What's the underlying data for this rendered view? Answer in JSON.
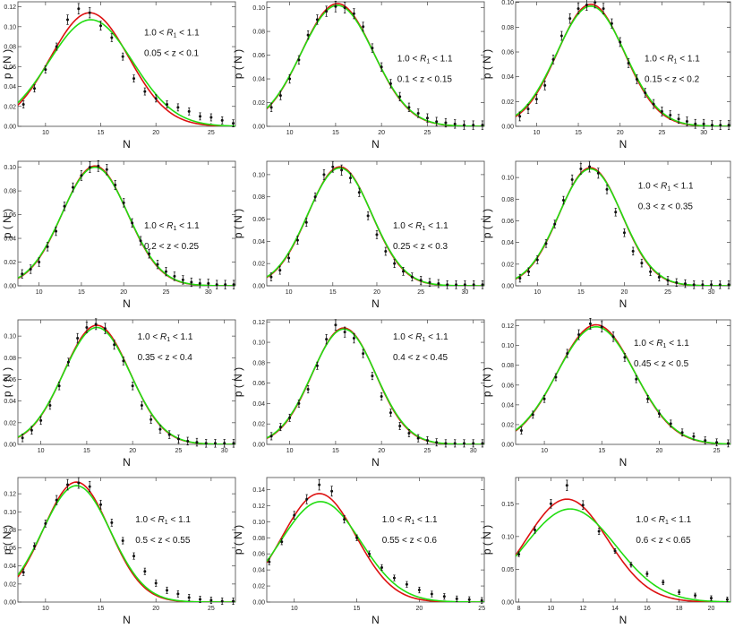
{
  "figure": {
    "colors": {
      "red_curve": "#dd1111",
      "green_curve": "#22dd11",
      "points": "#111111",
      "frame": "#444444"
    }
  },
  "chart_data": [
    {
      "type": "scatter",
      "xlabel": "N",
      "ylabel": "p ( N )",
      "annotation": {
        "line1_prefix": "1.0 < ",
        "line1_var": "R",
        "line1_sub": "1",
        "line1_suffix": " < 1.1",
        "line2": "0.05 < z < 0.1"
      },
      "xlim": [
        7.5,
        27.2
      ],
      "ylim": [
        0,
        0.125
      ],
      "xticks": [
        10,
        15,
        20,
        25
      ],
      "yticks": [
        0.0,
        0.02,
        0.04,
        0.06,
        0.08,
        0.1,
        0.12
      ],
      "x": [
        8,
        9,
        10,
        11,
        12,
        13,
        14,
        15,
        16,
        17,
        18,
        19,
        20,
        21,
        22,
        23,
        24,
        25,
        26,
        27
      ],
      "y": [
        0.022,
        0.038,
        0.057,
        0.08,
        0.107,
        0.118,
        0.114,
        0.101,
        0.089,
        0.07,
        0.048,
        0.035,
        0.028,
        0.022,
        0.019,
        0.015,
        0.01,
        0.009,
        0.006,
        0.003
      ],
      "series": [
        {
          "color": "#dd1111",
          "mean": 14.0,
          "sd": 3.55,
          "peak": 0.114
        },
        {
          "color": "#22dd11",
          "mean": 14.1,
          "sd": 3.8,
          "peak": 0.107
        }
      ]
    },
    {
      "type": "scatter",
      "xlabel": "N",
      "ylabel": "p ( N )",
      "annotation": {
        "line1_prefix": "1.0 < ",
        "line1_var": "R",
        "line1_sub": "1",
        "line1_suffix": " < 1.1",
        "line2": "0.1 < z < 0.15"
      },
      "xlim": [
        7.5,
        31.2
      ],
      "ylim": [
        0,
        0.105
      ],
      "xticks": [
        10,
        15,
        20,
        25
      ],
      "yticks": [
        0.0,
        0.02,
        0.04,
        0.06,
        0.08,
        0.1
      ],
      "x": [
        8,
        9,
        10,
        11,
        12,
        13,
        14,
        15,
        16,
        17,
        18,
        19,
        20,
        21,
        22,
        23,
        24,
        25,
        26,
        27,
        28,
        29,
        30,
        31
      ],
      "y": [
        0.016,
        0.026,
        0.04,
        0.056,
        0.077,
        0.09,
        0.097,
        0.101,
        0.1,
        0.095,
        0.084,
        0.066,
        0.05,
        0.036,
        0.025,
        0.016,
        0.011,
        0.007,
        0.004,
        0.003,
        0.002,
        0.001,
        0.001,
        0.001
      ],
      "series": [
        {
          "color": "#dd1111",
          "mean": 15.2,
          "sd": 3.9,
          "peak": 0.1035
        },
        {
          "color": "#22dd11",
          "mean": 15.2,
          "sd": 3.95,
          "peak": 0.102
        }
      ]
    },
    {
      "type": "scatter",
      "xlabel": "N",
      "ylabel": "p ( N )",
      "annotation": {
        "line1_prefix": "1.0 < ",
        "line1_var": "R",
        "line1_sub": "1",
        "line1_suffix": " < 1.1",
        "line2": "0.15 < z < 0.2"
      },
      "xlim": [
        7.5,
        33.2
      ],
      "ylim": [
        0,
        0.1005
      ],
      "xticks": [
        10,
        15,
        20,
        25,
        30
      ],
      "yticks": [
        0.0,
        0.02,
        0.04,
        0.06,
        0.08,
        0.1
      ],
      "x": [
        8,
        9,
        10,
        11,
        12,
        13,
        14,
        15,
        16,
        17,
        18,
        19,
        20,
        21,
        22,
        23,
        24,
        25,
        26,
        27,
        28,
        29,
        30,
        31,
        32,
        33
      ],
      "y": [
        0.008,
        0.014,
        0.022,
        0.033,
        0.054,
        0.073,
        0.087,
        0.095,
        0.098,
        0.1,
        0.095,
        0.083,
        0.068,
        0.051,
        0.038,
        0.027,
        0.018,
        0.012,
        0.009,
        0.006,
        0.004,
        0.002,
        0.002,
        0.001,
        0.001,
        0.001
      ],
      "series": [
        {
          "color": "#dd1111",
          "mean": 16.5,
          "sd": 4.0,
          "peak": 0.0985
        },
        {
          "color": "#22dd11",
          "mean": 16.5,
          "sd": 4.1,
          "peak": 0.097
        }
      ]
    },
    {
      "type": "scatter",
      "xlabel": "N",
      "ylabel": "p ( N )",
      "annotation": {
        "line1_prefix": "1.0 < ",
        "line1_var": "R",
        "line1_sub": "1",
        "line1_suffix": " < 1.1",
        "line2": "0.2 < z < 0.25"
      },
      "xlim": [
        7.5,
        33.2
      ],
      "ylim": [
        0,
        0.105
      ],
      "xticks": [
        10,
        15,
        20,
        25,
        30
      ],
      "yticks": [
        0.0,
        0.02,
        0.04,
        0.06,
        0.08,
        0.1
      ],
      "x": [
        8,
        9,
        10,
        11,
        12,
        13,
        14,
        15,
        16,
        17,
        18,
        19,
        20,
        21,
        22,
        23,
        24,
        25,
        26,
        27,
        28,
        29,
        30,
        31,
        32,
        33
      ],
      "y": [
        0.01,
        0.014,
        0.02,
        0.033,
        0.046,
        0.067,
        0.083,
        0.093,
        0.1,
        0.101,
        0.098,
        0.085,
        0.07,
        0.053,
        0.038,
        0.027,
        0.018,
        0.012,
        0.008,
        0.005,
        0.003,
        0.002,
        0.002,
        0.001,
        0.001,
        0.001
      ],
      "series": [
        {
          "color": "#dd1111",
          "mean": 16.6,
          "sd": 3.85,
          "peak": 0.101
        },
        {
          "color": "#22dd11",
          "mean": 16.6,
          "sd": 3.9,
          "peak": 0.1
        }
      ]
    },
    {
      "type": "scatter",
      "xlabel": "N",
      "ylabel": "p ( N )",
      "annotation": {
        "line1_prefix": "1.0 < ",
        "line1_var": "R",
        "line1_sub": "1",
        "line1_suffix": " < 1.1",
        "line2": "0.25 < z < 0.3"
      },
      "xlim": [
        7.5,
        32.2
      ],
      "ylim": [
        0,
        0.112
      ],
      "xticks": [
        10,
        15,
        20,
        25,
        30
      ],
      "yticks": [
        0.0,
        0.02,
        0.04,
        0.06,
        0.08,
        0.1
      ],
      "x": [
        8,
        9,
        10,
        11,
        12,
        13,
        14,
        15,
        16,
        17,
        18,
        19,
        20,
        21,
        22,
        23,
        24,
        25,
        26,
        27,
        28,
        29,
        30,
        31,
        32
      ],
      "y": [
        0.008,
        0.014,
        0.025,
        0.041,
        0.057,
        0.08,
        0.1,
        0.107,
        0.104,
        0.097,
        0.084,
        0.063,
        0.046,
        0.031,
        0.02,
        0.013,
        0.008,
        0.005,
        0.003,
        0.002,
        0.001,
        0.001,
        0.001,
        0.001,
        0.001
      ],
      "series": [
        {
          "color": "#dd1111",
          "mean": 15.8,
          "sd": 3.6,
          "peak": 0.107
        },
        {
          "color": "#22dd11",
          "mean": 15.8,
          "sd": 3.65,
          "peak": 0.106
        }
      ]
    },
    {
      "type": "scatter",
      "xlabel": "N",
      "ylabel": "p ( N )",
      "annotation": {
        "line1_prefix": "1.0 < ",
        "line1_var": "R",
        "line1_sub": "1",
        "line1_suffix": " < 1.1",
        "line2": "0.3 < z < 0.35"
      },
      "xlim": [
        7.5,
        32.2
      ],
      "ylim": [
        0,
        0.115
      ],
      "xticks": [
        10,
        15,
        20,
        25,
        30
      ],
      "yticks": [
        0.0,
        0.02,
        0.04,
        0.06,
        0.08,
        0.1
      ],
      "x": [
        8,
        9,
        10,
        11,
        12,
        13,
        14,
        15,
        16,
        17,
        18,
        19,
        20,
        21,
        22,
        23,
        24,
        25,
        26,
        27,
        28,
        29,
        30,
        31,
        32
      ],
      "y": [
        0.007,
        0.013,
        0.024,
        0.039,
        0.057,
        0.079,
        0.098,
        0.108,
        0.11,
        0.104,
        0.089,
        0.068,
        0.049,
        0.032,
        0.021,
        0.013,
        0.008,
        0.005,
        0.003,
        0.002,
        0.001,
        0.001,
        0.001,
        0.001,
        0.001
      ],
      "series": [
        {
          "color": "#dd1111",
          "mean": 16.1,
          "sd": 3.6,
          "peak": 0.109
        },
        {
          "color": "#22dd11",
          "mean": 16.1,
          "sd": 3.65,
          "peak": 0.108
        }
      ]
    },
    {
      "type": "scatter",
      "xlabel": "N",
      "ylabel": "p ( N )",
      "annotation": {
        "line1_prefix": "1.0 < ",
        "line1_var": "R",
        "line1_sub": "1",
        "line1_suffix": " < 1.1",
        "line2": "0.35 < z < 0.4"
      },
      "xlim": [
        7.5,
        31.2
      ],
      "ylim": [
        0,
        0.115
      ],
      "xticks": [
        10,
        15,
        20,
        25,
        30
      ],
      "yticks": [
        0.0,
        0.02,
        0.04,
        0.06,
        0.08,
        0.1
      ],
      "x": [
        8,
        9,
        10,
        11,
        12,
        13,
        14,
        15,
        16,
        17,
        18,
        19,
        20,
        21,
        22,
        23,
        24,
        25,
        26,
        27,
        28,
        29,
        30,
        31
      ],
      "y": [
        0.006,
        0.013,
        0.022,
        0.036,
        0.054,
        0.076,
        0.098,
        0.108,
        0.111,
        0.107,
        0.092,
        0.077,
        0.054,
        0.036,
        0.023,
        0.014,
        0.009,
        0.005,
        0.003,
        0.002,
        0.001,
        0.001,
        0.001,
        0.001
      ],
      "series": [
        {
          "color": "#dd1111",
          "mean": 16.1,
          "sd": 3.6,
          "peak": 0.11
        },
        {
          "color": "#22dd11",
          "mean": 16.1,
          "sd": 3.65,
          "peak": 0.108
        }
      ]
    },
    {
      "type": "scatter",
      "xlabel": "N",
      "ylabel": "p ( N )",
      "annotation": {
        "line1_prefix": "1.0 < ",
        "line1_var": "R",
        "line1_sub": "1",
        "line1_suffix": " < 1.1",
        "line2": "0.4 < z < 0.45"
      },
      "xlim": [
        7.5,
        31.2
      ],
      "ylim": [
        0,
        0.122
      ],
      "xticks": [
        10,
        15,
        20,
        25,
        30
      ],
      "yticks": [
        0.0,
        0.02,
        0.04,
        0.06,
        0.08,
        0.1,
        0.12
      ],
      "x": [
        8,
        9,
        10,
        11,
        12,
        13,
        14,
        15,
        16,
        17,
        18,
        19,
        20,
        21,
        22,
        23,
        24,
        25,
        26,
        27,
        28,
        29,
        30,
        31
      ],
      "y": [
        0.008,
        0.017,
        0.026,
        0.04,
        0.054,
        0.077,
        0.103,
        0.117,
        0.11,
        0.104,
        0.089,
        0.067,
        0.047,
        0.031,
        0.018,
        0.011,
        0.006,
        0.004,
        0.002,
        0.001,
        0.001,
        0.001,
        0.001,
        0.001
      ],
      "series": [
        {
          "color": "#dd1111",
          "mean": 15.9,
          "sd": 3.45,
          "peak": 0.114
        },
        {
          "color": "#22dd11",
          "mean": 15.9,
          "sd": 3.5,
          "peak": 0.113
        }
      ]
    },
    {
      "type": "scatter",
      "xlabel": "N",
      "ylabel": "p ( N )",
      "annotation": {
        "line1_prefix": "1.0 < ",
        "line1_var": "R",
        "line1_sub": "1",
        "line1_suffix": " < 1.1",
        "line2": "0.45 < z < 0.5"
      },
      "xlim": [
        7.5,
        26.2
      ],
      "ylim": [
        0,
        0.126
      ],
      "xticks": [
        10,
        15,
        20,
        25
      ],
      "yticks": [
        0.0,
        0.02,
        0.04,
        0.06,
        0.08,
        0.1,
        0.12
      ],
      "x": [
        8,
        9,
        10,
        11,
        12,
        13,
        14,
        15,
        16,
        17,
        18,
        19,
        20,
        21,
        22,
        23,
        24,
        25,
        26
      ],
      "y": [
        0.014,
        0.03,
        0.046,
        0.068,
        0.092,
        0.111,
        0.122,
        0.119,
        0.109,
        0.088,
        0.066,
        0.046,
        0.031,
        0.021,
        0.012,
        0.008,
        0.004,
        0.002,
        0.001
      ],
      "series": [
        {
          "color": "#dd1111",
          "mean": 14.5,
          "sd": 3.35,
          "peak": 0.121
        },
        {
          "color": "#22dd11",
          "mean": 14.5,
          "sd": 3.4,
          "peak": 0.119
        }
      ]
    },
    {
      "type": "scatter",
      "xlabel": "N",
      "ylabel": "p ( N )",
      "annotation": {
        "line1_prefix": "1.0 < ",
        "line1_var": "R",
        "line1_sub": "1",
        "line1_suffix": " < 1.1",
        "line2": "0.5 < z < 0.55"
      },
      "xlim": [
        7.5,
        27.2
      ],
      "ylim": [
        0,
        0.138
      ],
      "xticks": [
        10,
        15,
        20,
        25
      ],
      "yticks": [
        0.0,
        0.02,
        0.04,
        0.06,
        0.08,
        0.1,
        0.12
      ],
      "x": [
        8,
        9,
        10,
        11,
        12,
        13,
        14,
        15,
        16,
        17,
        18,
        19,
        20,
        21,
        22,
        23,
        24,
        25,
        26,
        27
      ],
      "y": [
        0.033,
        0.062,
        0.087,
        0.113,
        0.13,
        0.132,
        0.128,
        0.108,
        0.088,
        0.068,
        0.051,
        0.034,
        0.021,
        0.013,
        0.009,
        0.005,
        0.003,
        0.002,
        0.001,
        0.001
      ],
      "series": [
        {
          "color": "#dd1111",
          "mean": 12.8,
          "sd": 3.0,
          "peak": 0.133
        },
        {
          "color": "#22dd11",
          "mean": 12.8,
          "sd": 3.1,
          "peak": 0.129
        }
      ]
    },
    {
      "type": "scatter",
      "xlabel": "N",
      "ylabel": "p ( N )",
      "annotation": {
        "line1_prefix": "1.0 < ",
        "line1_var": "R",
        "line1_sub": "1",
        "line1_suffix": " < 1.1",
        "line2": "0.55 < z < 0.6"
      },
      "xlim": [
        7.8,
        25.2
      ],
      "ylim": [
        0,
        0.155
      ],
      "xticks": [
        10,
        15,
        20,
        25
      ],
      "yticks": [
        0.0,
        0.02,
        0.04,
        0.06,
        0.08,
        0.1,
        0.12,
        0.14
      ],
      "x": [
        8,
        9,
        10,
        11,
        12,
        13,
        14,
        15,
        16,
        17,
        18,
        19,
        20,
        21,
        22,
        23,
        24,
        25
      ],
      "y": [
        0.05,
        0.075,
        0.108,
        0.128,
        0.146,
        0.138,
        0.103,
        0.08,
        0.06,
        0.043,
        0.03,
        0.022,
        0.015,
        0.01,
        0.007,
        0.004,
        0.003,
        0.002
      ],
      "series": [
        {
          "color": "#dd1111",
          "mean": 12.0,
          "sd": 2.95,
          "peak": 0.135
        },
        {
          "color": "#22dd11",
          "mean": 12.1,
          "sd": 3.2,
          "peak": 0.125
        }
      ]
    },
    {
      "type": "scatter",
      "xlabel": "N",
      "ylabel": "p ( N )",
      "annotation": {
        "line1_prefix": "1.0 < ",
        "line1_var": "R",
        "line1_sub": "1",
        "line1_suffix": " < 1.1",
        "line2": "0.6 < z < 0.65"
      },
      "xlim": [
        7.8,
        21.2
      ],
      "ylim": [
        0,
        0.19
      ],
      "xticks": [
        8,
        10,
        12,
        14,
        16,
        18,
        20
      ],
      "yticks": [
        0.0,
        0.05,
        0.1,
        0.15
      ],
      "x": [
        8,
        9,
        10,
        11,
        12,
        13,
        14,
        15,
        16,
        17,
        18,
        19,
        20,
        21
      ],
      "y": [
        0.073,
        0.11,
        0.15,
        0.178,
        0.148,
        0.108,
        0.078,
        0.057,
        0.043,
        0.03,
        0.015,
        0.01,
        0.006,
        0.004
      ],
      "series": [
        {
          "color": "#dd1111",
          "mean": 11.0,
          "sd": 2.55,
          "peak": 0.157
        },
        {
          "color": "#22dd11",
          "mean": 11.2,
          "sd": 2.85,
          "peak": 0.142
        }
      ]
    }
  ]
}
